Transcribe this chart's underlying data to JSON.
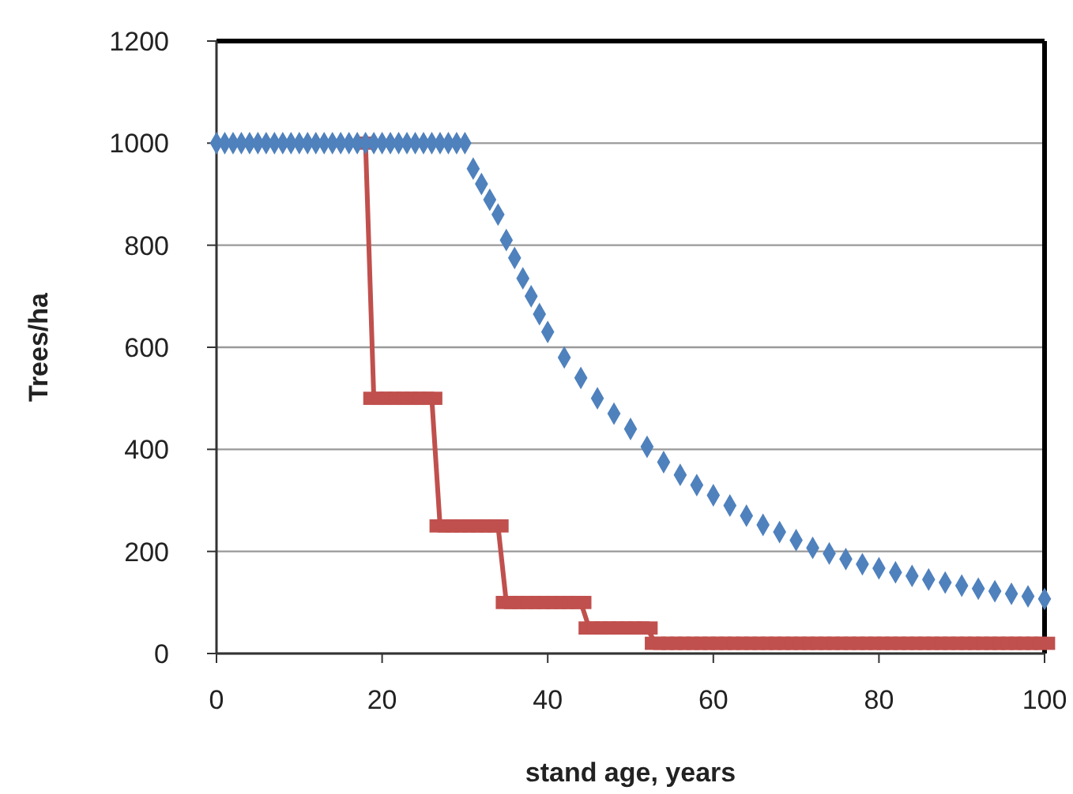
{
  "chart_data": {
    "type": "scatter",
    "xlabel": "stand age, years",
    "ylabel": "Trees/ha",
    "xlim": [
      0,
      100
    ],
    "ylim": [
      0,
      1200
    ],
    "xticks": [
      0,
      20,
      40,
      60,
      80,
      100
    ],
    "yticks": [
      0,
      200,
      400,
      600,
      800,
      1000,
      1200
    ],
    "grid": "y",
    "series": [
      {
        "type": "line",
        "color": "#c0504d",
        "marker": "square",
        "line_style": "solid",
        "x": [
          18,
          19,
          20,
          21,
          22,
          23,
          24,
          25,
          26,
          27,
          28,
          29,
          30,
          31,
          32,
          33,
          34,
          35,
          36,
          37,
          38,
          39,
          40,
          41,
          42,
          43,
          44,
          45,
          46,
          47,
          48,
          49,
          50,
          51,
          52,
          53,
          54,
          55,
          56,
          57,
          58,
          59,
          60,
          61,
          62,
          63,
          64,
          65,
          66,
          67,
          68,
          69,
          70,
          71,
          72,
          73,
          74,
          75,
          76,
          77,
          78,
          79,
          80,
          81,
          82,
          83,
          84,
          85,
          86,
          87,
          88,
          89,
          90,
          91,
          92,
          93,
          94,
          95,
          96,
          97,
          98,
          99,
          100
        ],
        "values": [
          1000,
          500,
          500,
          500,
          500,
          500,
          500,
          500,
          500,
          250,
          250,
          250,
          250,
          250,
          250,
          250,
          250,
          100,
          100,
          100,
          100,
          100,
          100,
          100,
          100,
          100,
          100,
          50,
          50,
          50,
          50,
          50,
          50,
          50,
          50,
          20,
          20,
          20,
          20,
          20,
          20,
          20,
          20,
          20,
          20,
          20,
          20,
          20,
          20,
          20,
          20,
          20,
          20,
          20,
          20,
          20,
          20,
          20,
          20,
          20,
          20,
          20,
          20,
          20,
          20,
          20,
          20,
          20,
          20,
          20,
          20,
          20,
          20,
          20,
          20,
          20,
          20,
          20,
          20,
          20,
          20,
          20,
          20
        ]
      },
      {
        "color": "#4f81bd",
        "marker": "diamond",
        "x": [
          0,
          1,
          2,
          3,
          4,
          5,
          6,
          7,
          8,
          9,
          10,
          11,
          12,
          13,
          14,
          15,
          16,
          17,
          18,
          19,
          20,
          21,
          22,
          23,
          24,
          25,
          26,
          27,
          28,
          29,
          30,
          31,
          32,
          33,
          34,
          35,
          36,
          37,
          38,
          39,
          40,
          42,
          44,
          46,
          48,
          50,
          52,
          54,
          56,
          58,
          60,
          62,
          64,
          66,
          68,
          70,
          72,
          74,
          76,
          78,
          80,
          82,
          84,
          86,
          88,
          90,
          92,
          94,
          96,
          98,
          100
        ],
        "values": [
          1000,
          1000,
          1000,
          1000,
          1000,
          1000,
          1000,
          1000,
          1000,
          1000,
          1000,
          1000,
          1000,
          1000,
          1000,
          1000,
          1000,
          1000,
          1000,
          1000,
          1000,
          1000,
          1000,
          1000,
          1000,
          1000,
          1000,
          1000,
          1000,
          1000,
          1000,
          950,
          920,
          889,
          860,
          810,
          775,
          735,
          700,
          665,
          630,
          580,
          540,
          500,
          470,
          440,
          405,
          375,
          350,
          330,
          310,
          290,
          270,
          252,
          238,
          222,
          207,
          196,
          185,
          175,
          167,
          159,
          152,
          145,
          139,
          133,
          127,
          122,
          117,
          112,
          107
        ]
      }
    ]
  }
}
